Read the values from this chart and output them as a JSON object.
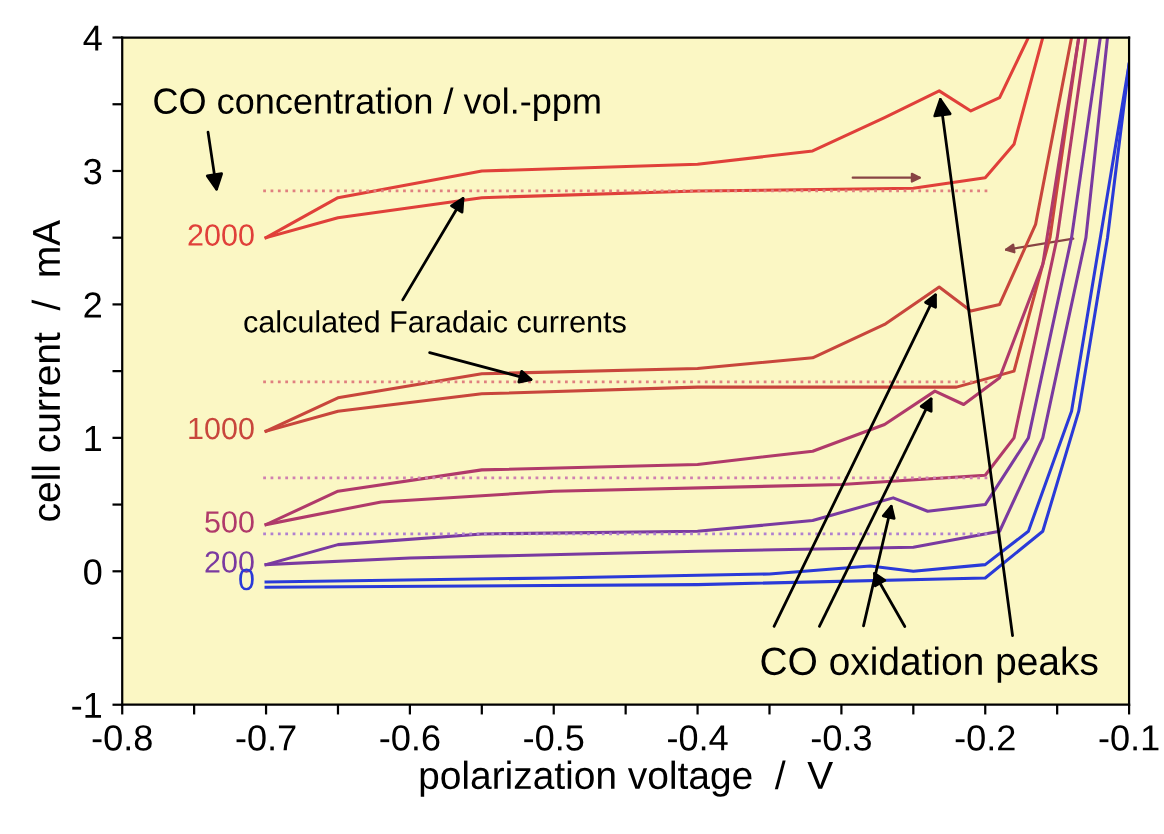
{
  "chart_data": {
    "type": "line",
    "xlabel": "polarization voltage  /  V",
    "ylabel": "cell current  /  mA",
    "xlim": [
      -0.8,
      -0.1
    ],
    "ylim": [
      -1,
      4
    ],
    "xticks": [
      -0.8,
      {
        "value": -0.75,
        "label": null
      },
      -0.7,
      {
        "value": -0.65,
        "label": null
      },
      -0.6,
      {
        "value": -0.55,
        "label": null
      },
      -0.5,
      {
        "value": -0.45,
        "label": null
      },
      -0.4,
      {
        "value": -0.35,
        "label": null
      },
      -0.3,
      {
        "value": -0.25,
        "label": null
      },
      -0.2,
      {
        "value": -0.15,
        "label": null
      },
      -0.1
    ],
    "yticks": [
      -1,
      {
        "value": -0.5,
        "label": null
      },
      0,
      {
        "value": 0.5,
        "label": null
      },
      1,
      {
        "value": 1.5,
        "label": null
      },
      2,
      {
        "value": 2.5,
        "label": null
      },
      3,
      {
        "value": 3.5,
        "label": null
      },
      4
    ],
    "grid": false,
    "legend": false,
    "marker": "none",
    "line_style": "solid",
    "series": [
      {
        "name": "2000",
        "color": "#e0403a",
        "x": [
          -0.7,
          -0.65,
          -0.55,
          -0.4,
          -0.32,
          -0.27,
          -0.232,
          -0.21,
          -0.19,
          -0.17
        ],
        "values": [
          2.5,
          2.8,
          3.0,
          3.05,
          3.15,
          3.4,
          3.6,
          3.45,
          3.55,
          4.0
        ]
      },
      {
        "color": "#e0403a",
        "x": [
          -0.7,
          -0.65,
          -0.55,
          -0.4,
          -0.25,
          -0.2,
          -0.18,
          -0.16
        ],
        "values": [
          2.5,
          2.65,
          2.8,
          2.85,
          2.87,
          2.95,
          3.2,
          4.0
        ]
      },
      {
        "name": "1000",
        "color": "#c8463c",
        "x": [
          -0.7,
          -0.65,
          -0.55,
          -0.4,
          -0.32,
          -0.27,
          -0.232,
          -0.21,
          -0.19,
          -0.165,
          -0.14
        ],
        "values": [
          1.05,
          1.3,
          1.48,
          1.52,
          1.6,
          1.85,
          2.13,
          1.95,
          2.0,
          2.6,
          4.0
        ]
      },
      {
        "color": "#c8463c",
        "x": [
          -0.7,
          -0.65,
          -0.55,
          -0.4,
          -0.22,
          -0.18,
          -0.155,
          -0.135
        ],
        "values": [
          1.05,
          1.2,
          1.33,
          1.38,
          1.38,
          1.5,
          2.5,
          4.0
        ]
      },
      {
        "name": "500",
        "color": "#b03a6a",
        "x": [
          -0.7,
          -0.65,
          -0.55,
          -0.4,
          -0.32,
          -0.27,
          -0.235,
          -0.215,
          -0.19,
          -0.16,
          -0.135
        ],
        "values": [
          0.35,
          0.6,
          0.76,
          0.8,
          0.9,
          1.1,
          1.35,
          1.25,
          1.45,
          2.3,
          4.0
        ]
      },
      {
        "color": "#b03a6a",
        "x": [
          -0.7,
          -0.62,
          -0.5,
          -0.3,
          -0.2,
          -0.18,
          -0.15,
          -0.13
        ],
        "values": [
          0.35,
          0.52,
          0.6,
          0.65,
          0.72,
          1.0,
          2.5,
          4.0
        ]
      },
      {
        "name": "200",
        "color": "#7a3aa0",
        "x": [
          -0.7,
          -0.65,
          -0.55,
          -0.4,
          -0.32,
          -0.264,
          -0.24,
          -0.2,
          -0.17,
          -0.14,
          -0.12
        ],
        "values": [
          0.05,
          0.2,
          0.28,
          0.3,
          0.38,
          0.55,
          0.45,
          0.5,
          1.0,
          2.5,
          4.0
        ]
      },
      {
        "color": "#7a3aa0",
        "x": [
          -0.7,
          -0.6,
          -0.4,
          -0.25,
          -0.19,
          -0.16,
          -0.13,
          -0.115
        ],
        "values": [
          0.05,
          0.1,
          0.15,
          0.18,
          0.3,
          1.0,
          2.5,
          4.0
        ]
      },
      {
        "name": "0",
        "color": "#2a3ad8",
        "x": [
          -0.7,
          -0.5,
          -0.35,
          -0.28,
          -0.25,
          -0.2,
          -0.17,
          -0.14,
          -0.12,
          -0.1
        ],
        "values": [
          -0.08,
          -0.05,
          -0.02,
          0.04,
          0.0,
          0.05,
          0.3,
          1.2,
          2.5,
          3.8
        ]
      },
      {
        "color": "#2a3ad8",
        "x": [
          -0.7,
          -0.4,
          -0.2,
          -0.16,
          -0.135,
          -0.115,
          -0.1
        ],
        "values": [
          -0.12,
          -0.1,
          -0.05,
          0.3,
          1.2,
          2.5,
          3.8
        ]
      }
    ],
    "ref_lines": [
      {
        "axis": "y",
        "value": 2.85,
        "color": "#e08080",
        "line_style": "dotted"
      },
      {
        "axis": "y",
        "value": 1.42,
        "color": "#e08080",
        "line_style": "dotted"
      },
      {
        "axis": "y",
        "value": 0.7,
        "color": "#d080b0",
        "line_style": "dotted"
      },
      {
        "axis": "y",
        "value": 0.28,
        "color": "#b080d0",
        "line_style": "dotted"
      }
    ],
    "annotations": [
      "CO concentration / vol.-ppm",
      {
        "text": "calculated Faradaic currents",
        "x": -0.56,
        "y": 2.85
      },
      {
        "text": "CO oxidation peaks",
        "x": -0.232,
        "y": 3.6
      }
    ]
  }
}
